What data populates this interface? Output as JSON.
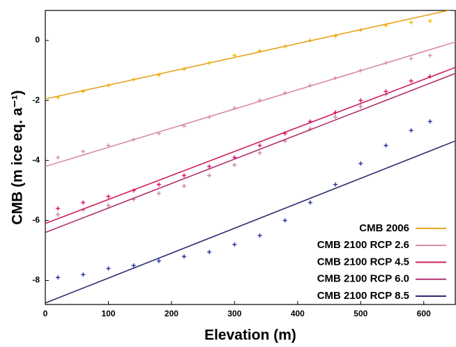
{
  "chart_data": {
    "type": "scatter",
    "x_label": "Elevation (m)",
    "y_label": "CMB (m ice eq. a⁻¹)",
    "xlim": [
      0,
      650
    ],
    "ylim": [
      -8.8,
      1
    ],
    "xticks": [
      0,
      100,
      200,
      300,
      400,
      500,
      600
    ],
    "yticks": [
      0,
      -2,
      -4,
      -6,
      -8
    ],
    "legend": "lower right",
    "series": [
      {
        "name": "CMB 2006",
        "color": "#f2c200",
        "line_color": "#e5a21a",
        "x": [
          20,
          60,
          100,
          140,
          180,
          220,
          260,
          300,
          340,
          380,
          420,
          460,
          500,
          540,
          580,
          610
        ],
        "values": [
          -1.9,
          -1.7,
          -1.5,
          -1.3,
          -1.15,
          -0.95,
          -0.75,
          -0.5,
          -0.35,
          -0.2,
          0.0,
          0.15,
          0.35,
          0.5,
          0.6,
          0.65
        ],
        "fit": {
          "x": [
            0,
            650
          ],
          "values": [
            -1.95,
            1.05
          ]
        }
      },
      {
        "name": "CMB 2100 RCP 2.6",
        "color": "#d99ab0",
        "line_color": "#d88aa4",
        "x": [
          20,
          60,
          100,
          140,
          180,
          220,
          260,
          300,
          340,
          380,
          420,
          460,
          500,
          540,
          580,
          610
        ],
        "values": [
          -3.9,
          -3.7,
          -3.5,
          -3.3,
          -3.1,
          -2.85,
          -2.55,
          -2.25,
          -2.0,
          -1.75,
          -1.5,
          -1.25,
          -1.0,
          -0.75,
          -0.6,
          -0.5
        ],
        "fit": {
          "x": [
            0,
            650
          ],
          "values": [
            -4.2,
            -0.05
          ]
        }
      },
      {
        "name": "CMB 2100 RCP 4.5",
        "color": "#e0157a",
        "line_color": "#d0205a",
        "x": [
          20,
          60,
          100,
          140,
          180,
          220,
          260,
          300,
          340,
          380,
          420,
          460,
          500,
          540,
          580,
          610
        ],
        "values": [
          -5.6,
          -5.4,
          -5.2,
          -5.0,
          -4.8,
          -4.5,
          -4.2,
          -3.9,
          -3.5,
          -3.1,
          -2.7,
          -2.4,
          -2.0,
          -1.7,
          -1.35,
          -1.2
        ],
        "fit": {
          "x": [
            0,
            650
          ],
          "values": [
            -6.1,
            -0.9
          ]
        }
      },
      {
        "name": "CMB 2100 RCP 6.0",
        "color": "#c88aa8",
        "line_color": "#b0306e",
        "x": [
          20,
          60,
          100,
          140,
          180,
          220,
          260,
          300,
          340,
          380,
          420,
          460,
          500,
          540
        ],
        "values": [
          -5.8,
          -5.65,
          -5.5,
          -5.3,
          -5.1,
          -4.85,
          -4.5,
          -4.15,
          -3.75,
          -3.35,
          -2.95,
          -2.55,
          -2.2,
          -1.8
        ],
        "fit": {
          "x": [
            0,
            650
          ],
          "values": [
            -6.4,
            -1.1
          ]
        }
      },
      {
        "name": "CMB 2100 RCP 8.5",
        "color": "#2a3aa0",
        "line_color": "#2c2c70",
        "x": [
          20,
          60,
          100,
          140,
          180,
          220,
          260,
          300,
          340,
          380,
          420,
          460,
          500,
          540,
          580,
          610
        ],
        "values": [
          -7.9,
          -7.8,
          -7.6,
          -7.5,
          -7.35,
          -7.2,
          -7.05,
          -6.8,
          -6.5,
          -6.0,
          -5.4,
          -4.8,
          -4.1,
          -3.5,
          -3.0,
          -2.7
        ],
        "fit": {
          "x": [
            0,
            650
          ],
          "values": [
            -8.75,
            -3.35
          ]
        }
      }
    ]
  }
}
